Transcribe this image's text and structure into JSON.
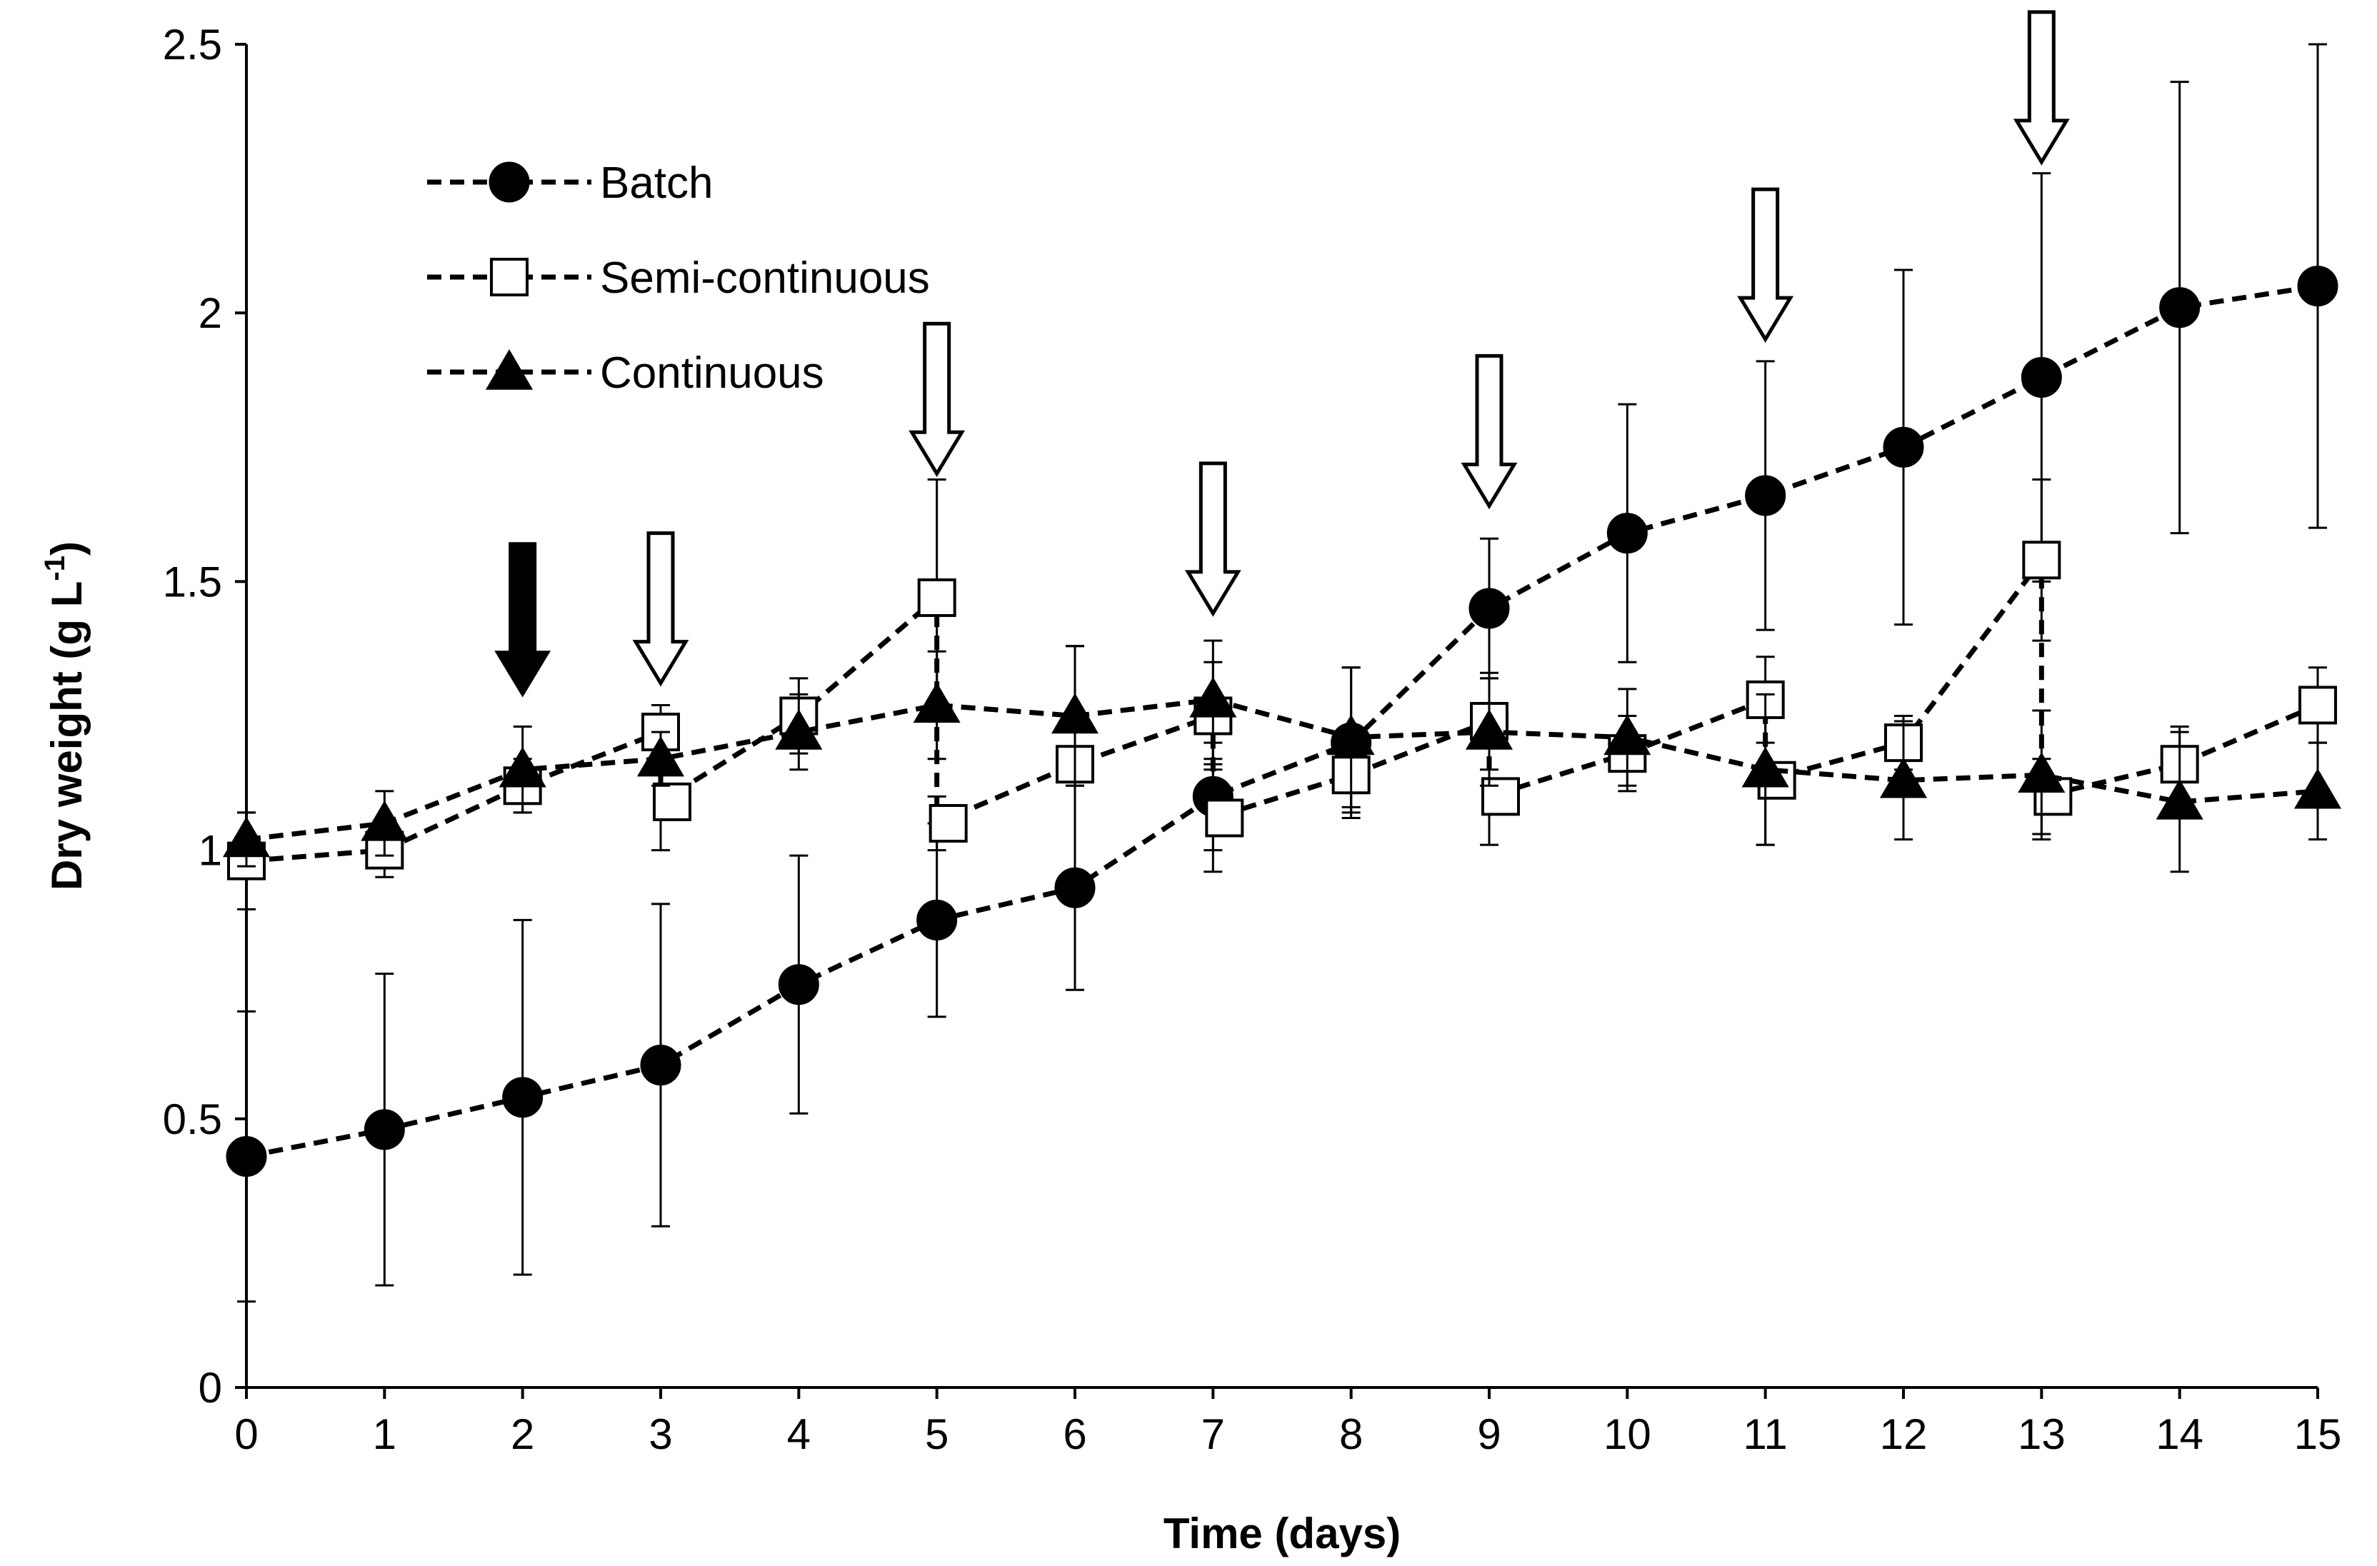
{
  "chart_data": {
    "type": "line",
    "xlabel": "Time (days)",
    "ylabel_main": "Dry weight (g L",
    "ylabel_sup": "-1",
    "ylabel_close": ")",
    "xlim": [
      0,
      15
    ],
    "ylim": [
      0,
      2.5
    ],
    "x_ticks": [
      0,
      1,
      2,
      3,
      4,
      5,
      6,
      7,
      8,
      9,
      10,
      11,
      12,
      13,
      14,
      15
    ],
    "y_ticks": [
      0,
      0.5,
      1,
      1.5,
      2,
      2.5
    ],
    "y_tick_labels": [
      "0",
      "0.5",
      "1",
      "1.5",
      "2",
      "2.5"
    ],
    "grid": false,
    "legend_position": "top-left",
    "line_style": "dashed",
    "color": "#000000",
    "series": [
      {
        "name": "Batch",
        "marker": "filled-circle",
        "x": [
          0,
          1,
          2,
          3,
          4,
          5,
          6,
          7,
          8,
          9,
          10,
          11,
          12,
          13,
          14,
          15
        ],
        "y": [
          0.43,
          0.48,
          0.54,
          0.6,
          0.75,
          0.87,
          0.93,
          1.1,
          1.2,
          1.45,
          1.59,
          1.66,
          1.75,
          1.88,
          2.01,
          2.05
        ],
        "err": [
          0.27,
          0.29,
          0.33,
          0.3,
          0.24,
          0.18,
          0.19,
          0.1,
          0.14,
          0.13,
          0.24,
          0.25,
          0.33,
          0.38,
          0.42,
          0.45
        ]
      },
      {
        "name": "Semi-continuous",
        "marker": "open-square",
        "x": [
          0,
          1,
          2,
          3,
          3,
          4,
          5,
          5,
          6,
          7,
          7,
          8,
          9,
          9,
          10,
          11,
          11,
          12,
          13,
          13,
          14,
          15
        ],
        "y": [
          0.98,
          1.0,
          1.12,
          1.22,
          1.09,
          1.25,
          1.47,
          1.05,
          1.16,
          1.25,
          1.06,
          1.14,
          1.24,
          1.1,
          1.18,
          1.28,
          1.13,
          1.2,
          1.54,
          1.1,
          1.16,
          1.27
        ],
        "err": [
          0.09,
          0.05,
          0.05,
          0.05,
          0.09,
          0.07,
          0.22,
          0.05,
          0.22,
          0.1,
          0.1,
          0.07,
          0.09,
          0.09,
          0.07,
          0.08,
          0.12,
          0.05,
          0.15,
          0.07,
          0.07,
          0.07
        ]
      },
      {
        "name": "Continuous",
        "marker": "filled-triangle",
        "x": [
          0,
          1,
          2,
          3,
          4,
          5,
          6,
          7,
          8,
          9,
          10,
          11,
          12,
          13,
          14,
          15
        ],
        "y": [
          1.02,
          1.05,
          1.15,
          1.17,
          1.22,
          1.27,
          1.25,
          1.28,
          1.21,
          1.22,
          1.21,
          1.15,
          1.13,
          1.14,
          1.09,
          1.11
        ],
        "err": [
          0.05,
          0.06,
          0.08,
          0.05,
          0.07,
          0.1,
          0.13,
          0.11,
          0.13,
          0.1,
          0.09,
          0.14,
          0.11,
          0.12,
          0.13,
          0.09
        ]
      }
    ],
    "arrows": [
      {
        "x": 2,
        "y_top": 1.57,
        "fill": "solid"
      },
      {
        "x": 3,
        "y_top": 1.59,
        "fill": "open"
      },
      {
        "x": 5,
        "y_top": 1.98,
        "fill": "open"
      },
      {
        "x": 7,
        "y_top": 1.72,
        "fill": "open"
      },
      {
        "x": 9,
        "y_top": 1.92,
        "fill": "open"
      },
      {
        "x": 11,
        "y_top": 2.23,
        "fill": "open"
      },
      {
        "x": 13,
        "y_top": 2.56,
        "fill": "open"
      }
    ]
  }
}
